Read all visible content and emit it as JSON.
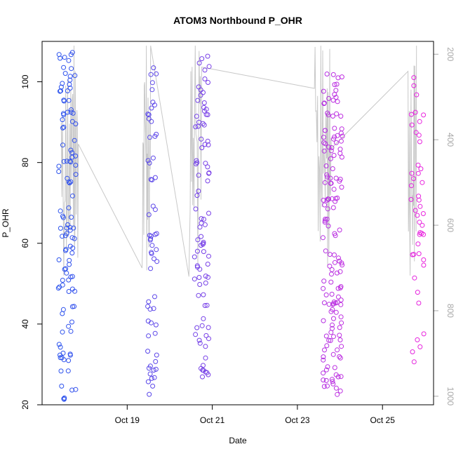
{
  "chart_data": {
    "type": "scatter",
    "title": "ATOM3 Northbound P_OHR",
    "xlabel": "Date",
    "ylabel": "P_OHR",
    "x_tick_labels": [
      "Oct 19",
      "Oct 21",
      "Oct 23",
      "Oct 25"
    ],
    "x_tick_days": [
      19,
      21,
      23,
      25
    ],
    "xlim": [
      17.0,
      26.2
    ],
    "ylim": [
      20,
      110
    ],
    "y_ticks": [
      20,
      40,
      60,
      80,
      100
    ],
    "y2lim": [
      1020,
      170
    ],
    "y2_ticks": [
      200,
      400,
      600,
      800,
      1000
    ],
    "grid": false,
    "legend": "none",
    "colors": {
      "start_point": "#2255ee",
      "end_point": "#ee22dd",
      "overlay_line": "#c8c8c8",
      "right_axis": "#a8a8a8"
    },
    "overlay_series_day_keypoints": [
      [
        17.45,
        360
      ],
      [
        17.6,
        260
      ],
      [
        17.75,
        180
      ],
      [
        17.85,
        410
      ],
      [
        19.35,
        700
      ],
      [
        19.45,
        180
      ],
      [
        19.55,
        180
      ],
      [
        20.45,
        720
      ],
      [
        20.6,
        180
      ],
      [
        20.75,
        230
      ],
      [
        23.4,
        280
      ],
      [
        23.55,
        180
      ],
      [
        23.7,
        280
      ],
      [
        23.8,
        420
      ],
      [
        25.6,
        240
      ],
      [
        25.7,
        530
      ],
      [
        25.8,
        180
      ]
    ],
    "clusters": [
      {
        "day": 17.38,
        "spread": 0.42,
        "n": 115,
        "ymin": 21,
        "ymax": 107.5
      },
      {
        "day": 19.48,
        "spread": 0.22,
        "n": 60,
        "ymin": 22,
        "ymax": 105
      },
      {
        "day": 20.58,
        "spread": 0.35,
        "n": 90,
        "ymin": 26.5,
        "ymax": 106.5
      },
      {
        "day": 23.6,
        "spread": 0.46,
        "n": 150,
        "ymin": 22.5,
        "ymax": 104.5
      },
      {
        "day": 25.67,
        "spread": 0.32,
        "n": 45,
        "ymin": 30.5,
        "ymax": 103
      }
    ]
  }
}
